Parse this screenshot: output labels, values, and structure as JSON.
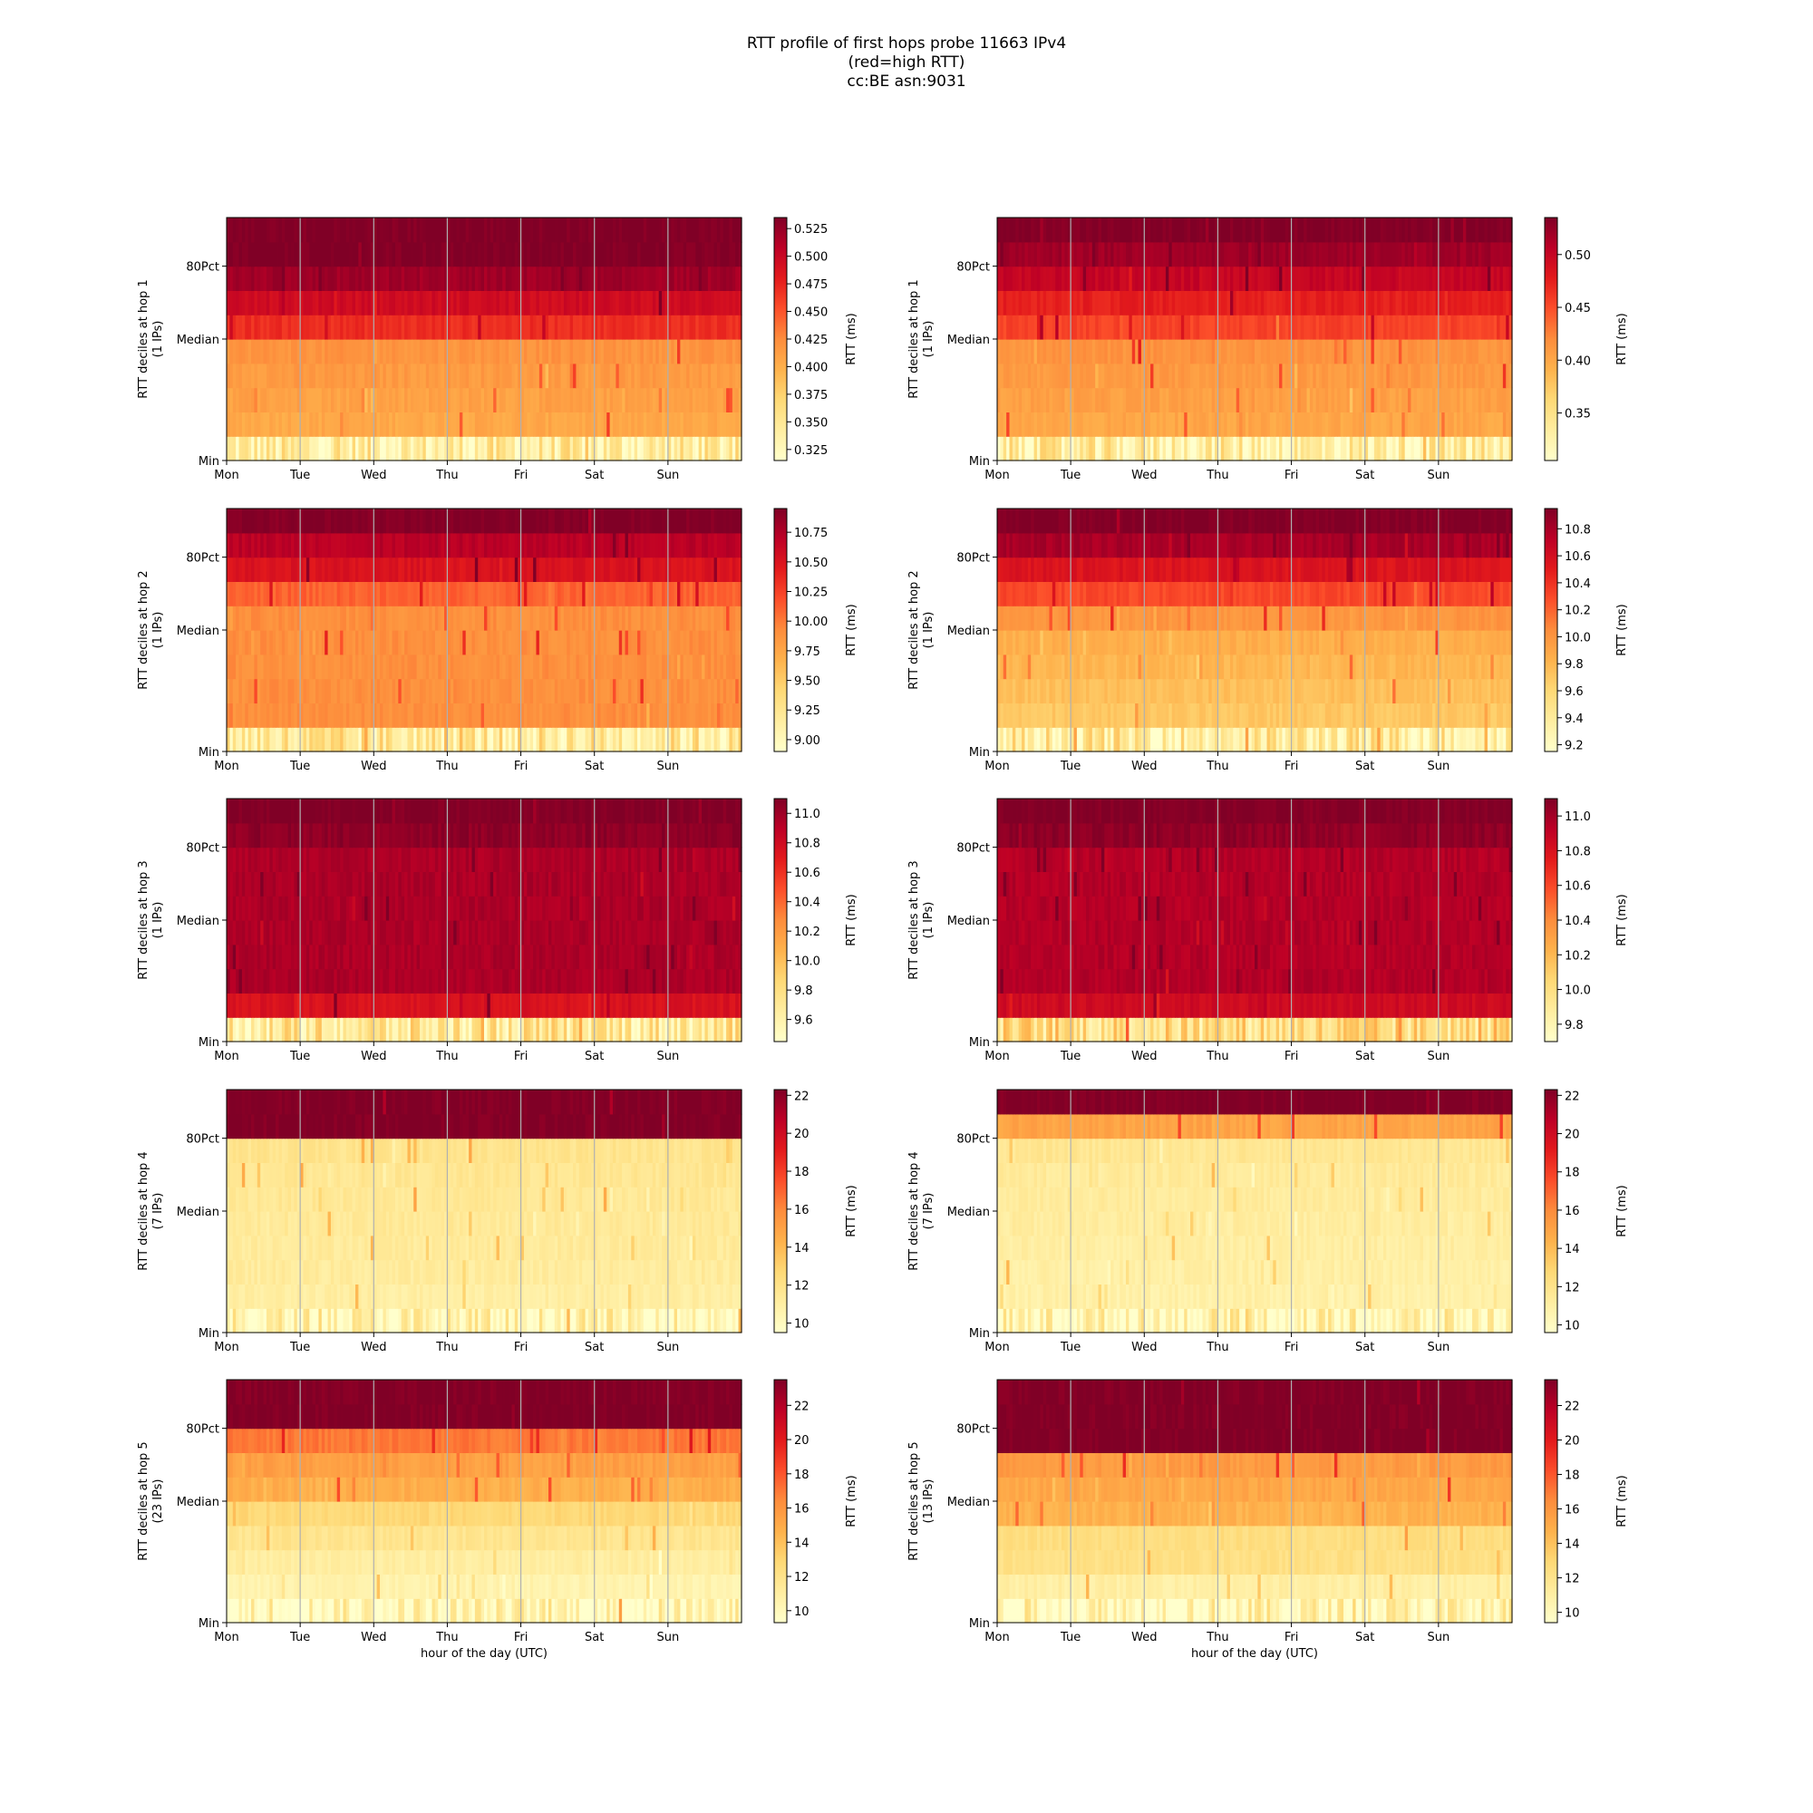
{
  "title": {
    "line1": "RTT profile of first hops probe 11663 IPv4",
    "line2": "(red=high RTT)",
    "line3": "cc:BE asn:9031"
  },
  "colormap": [
    "#ffffcc",
    "#ffeda0",
    "#fed976",
    "#feb24c",
    "#fd8d3c",
    "#fc4e2a",
    "#e31a1c",
    "#bd0026",
    "#800026"
  ],
  "chart_data": [
    {
      "type": "heatmap",
      "ylabel": "RTT deciles at hop 1",
      "ylabel_sub": "(1 IPs)",
      "x_ticks": [
        "Mon",
        "Tue",
        "Wed",
        "Thu",
        "Fri",
        "Sat",
        "Sun"
      ],
      "y_ticks": [
        "Min",
        "Median",
        "80Pct"
      ],
      "colorbar_label": "RTT (ms)",
      "color_range": [
        0.315,
        0.535
      ],
      "colorbar_ticks": [
        "0.325",
        "0.350",
        "0.375",
        "0.400",
        "0.425",
        "0.450",
        "0.475",
        "0.500",
        "0.525"
      ],
      "decile_values": [
        0.34,
        0.405,
        0.41,
        0.415,
        0.42,
        0.47,
        0.495,
        0.52,
        0.535,
        0.535
      ],
      "grid": true
    },
    {
      "type": "heatmap",
      "ylabel": "RTT deciles at hop 1",
      "ylabel_sub": "(1 IPs)",
      "x_ticks": [
        "Mon",
        "Tue",
        "Wed",
        "Thu",
        "Fri",
        "Sat",
        "Sun"
      ],
      "y_ticks": [
        "Min",
        "Median",
        "80Pct"
      ],
      "colorbar_label": "RTT (ms)",
      "color_range": [
        0.305,
        0.535
      ],
      "colorbar_ticks": [
        "0.35",
        "0.40",
        "0.45",
        "0.50"
      ],
      "decile_values": [
        0.33,
        0.4,
        0.405,
        0.41,
        0.415,
        0.455,
        0.475,
        0.5,
        0.52,
        0.535
      ],
      "grid": true
    },
    {
      "type": "heatmap",
      "ylabel": "RTT deciles at hop 2",
      "ylabel_sub": "(1 IPs)",
      "x_ticks": [
        "Mon",
        "Tue",
        "Wed",
        "Thu",
        "Fri",
        "Sat",
        "Sun"
      ],
      "y_ticks": [
        "Min",
        "Median",
        "80Pct"
      ],
      "colorbar_label": "RTT (ms)",
      "color_range": [
        8.9,
        10.95
      ],
      "colorbar_ticks": [
        "9.00",
        "9.25",
        "9.50",
        "9.75",
        "10.00",
        "10.25",
        "10.50",
        "10.75"
      ],
      "decile_values": [
        9.2,
        9.9,
        9.9,
        9.9,
        9.9,
        9.9,
        10.1,
        10.5,
        10.7,
        10.95
      ],
      "grid": true
    },
    {
      "type": "heatmap",
      "ylabel": "RTT deciles at hop 2",
      "ylabel_sub": "(1 IPs)",
      "x_ticks": [
        "Mon",
        "Tue",
        "Wed",
        "Thu",
        "Fri",
        "Sat",
        "Sun"
      ],
      "y_ticks": [
        "Min",
        "Median",
        "80Pct"
      ],
      "colorbar_label": "RTT (ms)",
      "color_range": [
        9.15,
        10.95
      ],
      "colorbar_ticks": [
        "9.2",
        "9.4",
        "9.6",
        "9.8",
        "10.0",
        "10.2",
        "10.4",
        "10.6",
        "10.8"
      ],
      "decile_values": [
        9.4,
        9.7,
        9.75,
        9.8,
        9.85,
        10.0,
        10.3,
        10.55,
        10.8,
        10.95
      ],
      "grid": true
    },
    {
      "type": "heatmap",
      "ylabel": "RTT deciles at hop 3",
      "ylabel_sub": "(1 IPs)",
      "x_ticks": [
        "Mon",
        "Tue",
        "Wed",
        "Thu",
        "Fri",
        "Sat",
        "Sun"
      ],
      "y_ticks": [
        "Min",
        "Median",
        "80Pct"
      ],
      "colorbar_label": "RTT (ms)",
      "color_range": [
        9.45,
        11.1
      ],
      "colorbar_ticks": [
        "9.6",
        "9.8",
        "10.0",
        "10.2",
        "10.4",
        "10.6",
        "10.8",
        "11.0"
      ],
      "decile_values": [
        9.7,
        10.75,
        10.95,
        10.95,
        10.95,
        10.95,
        10.95,
        10.95,
        11.05,
        11.1
      ],
      "grid": true
    },
    {
      "type": "heatmap",
      "ylabel": "RTT deciles at hop 3",
      "ylabel_sub": "(1 IPs)",
      "x_ticks": [
        "Mon",
        "Tue",
        "Wed",
        "Thu",
        "Fri",
        "Sat",
        "Sun"
      ],
      "y_ticks": [
        "Min",
        "Median",
        "80Pct"
      ],
      "colorbar_label": "RTT (ms)",
      "color_range": [
        9.7,
        11.1
      ],
      "colorbar_ticks": [
        "9.8",
        "10.0",
        "10.2",
        "10.4",
        "10.6",
        "10.8",
        "11.0"
      ],
      "decile_values": [
        10.0,
        10.85,
        10.95,
        10.95,
        10.95,
        10.95,
        10.95,
        10.95,
        11.05,
        11.1
      ],
      "grid": true
    },
    {
      "type": "heatmap",
      "ylabel": "RTT deciles at hop 4",
      "ylabel_sub": "(7 IPs)",
      "x_ticks": [
        "Mon",
        "Tue",
        "Wed",
        "Thu",
        "Fri",
        "Sat",
        "Sun"
      ],
      "y_ticks": [
        "Min",
        "Median",
        "80Pct"
      ],
      "colorbar_label": "RTT (ms)",
      "color_range": [
        9.5,
        22.3
      ],
      "colorbar_ticks": [
        "10",
        "12",
        "14",
        "16",
        "18",
        "20",
        "22"
      ],
      "decile_values": [
        10.3,
        11.0,
        11.2,
        11.3,
        11.4,
        11.5,
        11.6,
        11.8,
        22.3,
        22.3
      ],
      "grid": true
    },
    {
      "type": "heatmap",
      "ylabel": "RTT deciles at hop 4",
      "ylabel_sub": "(7 IPs)",
      "x_ticks": [
        "Mon",
        "Tue",
        "Wed",
        "Thu",
        "Fri",
        "Sat",
        "Sun"
      ],
      "y_ticks": [
        "Min",
        "Median",
        "80Pct"
      ],
      "colorbar_label": "RTT (ms)",
      "color_range": [
        9.6,
        22.3
      ],
      "colorbar_ticks": [
        "10",
        "12",
        "14",
        "16",
        "18",
        "20",
        "22"
      ],
      "decile_values": [
        10.4,
        10.9,
        11.0,
        11.1,
        11.2,
        11.3,
        11.4,
        11.7,
        15.0,
        22.3
      ],
      "grid": true
    },
    {
      "type": "heatmap",
      "ylabel": "RTT deciles at hop 5",
      "ylabel_sub": "(23 IPs)",
      "x_ticks": [
        "Mon",
        "Tue",
        "Wed",
        "Thu",
        "Fri",
        "Sat",
        "Sun"
      ],
      "y_ticks": [
        "Min",
        "Median",
        "80Pct"
      ],
      "x_axis_label": "hour of the day (UTC)",
      "colorbar_label": "RTT (ms)",
      "color_range": [
        9.3,
        23.5
      ],
      "colorbar_ticks": [
        "10",
        "12",
        "14",
        "16",
        "18",
        "20",
        "22"
      ],
      "decile_values": [
        10.0,
        10.5,
        11.0,
        11.8,
        12.8,
        14.8,
        15.5,
        17.0,
        23.5,
        23.5
      ],
      "grid": true
    },
    {
      "type": "heatmap",
      "ylabel": "RTT deciles at hop 5",
      "ylabel_sub": "(13 IPs)",
      "x_ticks": [
        "Mon",
        "Tue",
        "Wed",
        "Thu",
        "Fri",
        "Sat",
        "Sun"
      ],
      "y_ticks": [
        "Min",
        "Median",
        "80Pct"
      ],
      "x_axis_label": "hour of the day (UTC)",
      "colorbar_label": "RTT (ms)",
      "color_range": [
        9.4,
        23.5
      ],
      "colorbar_ticks": [
        "10",
        "12",
        "14",
        "16",
        "18",
        "20",
        "22"
      ],
      "decile_values": [
        10.3,
        11.0,
        12.3,
        12.5,
        14.7,
        15.2,
        15.8,
        23.5,
        23.5,
        23.5
      ],
      "grid": true
    }
  ]
}
